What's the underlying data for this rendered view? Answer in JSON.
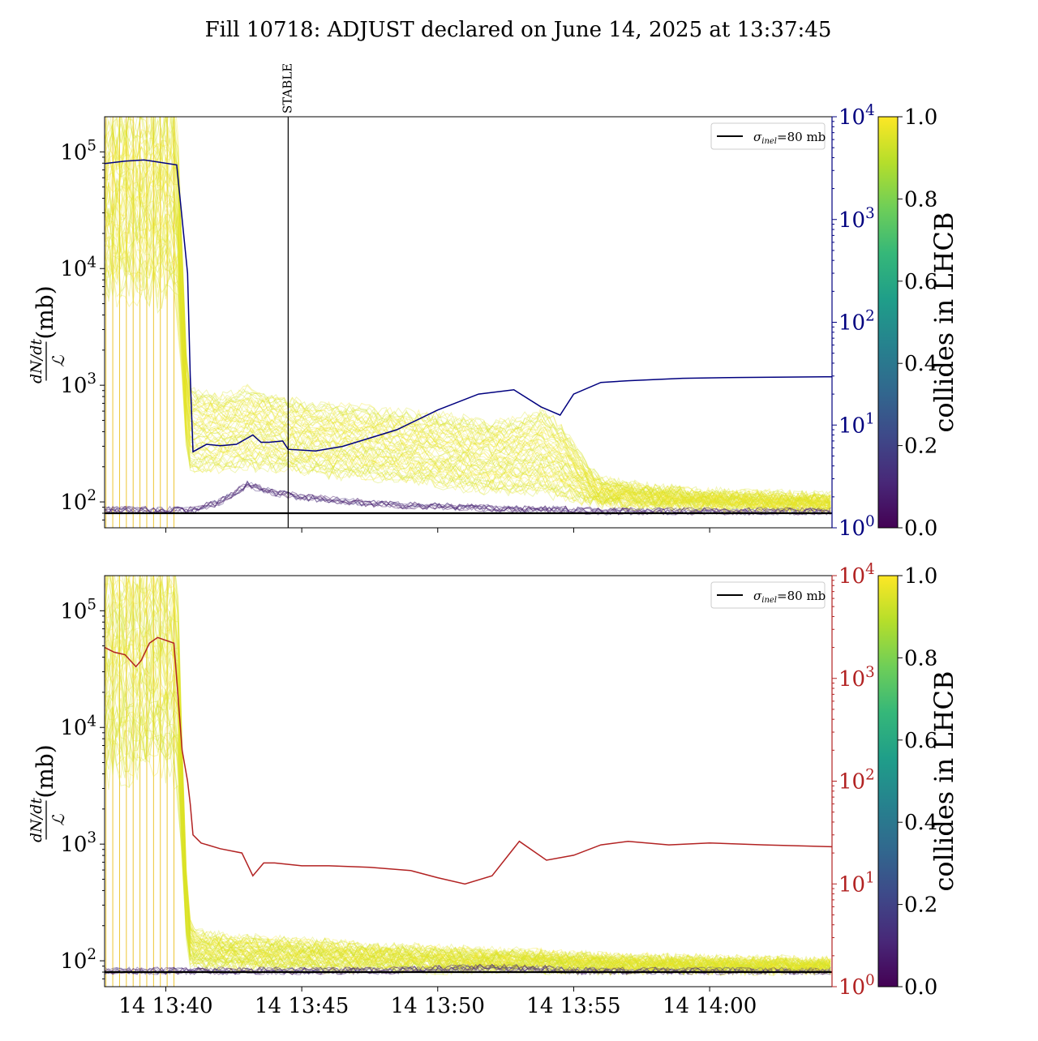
{
  "figure": {
    "title": "Fill 10718: ADJUST declared on June 14, 2025 at 13:37:45"
  },
  "chart_data": [
    {
      "type": "line",
      "panel": "top",
      "ylabel_num": "dN/dt",
      "ylabel_den": "ℒ",
      "ylabel_unit": "(mb)",
      "yscale": "log",
      "ylim": [
        60,
        200000
      ],
      "y_ticks": [
        {
          "value": 100,
          "label": "10",
          "exp": "2"
        },
        {
          "value": 1000,
          "label": "10",
          "exp": "3"
        },
        {
          "value": 10000,
          "label": "10",
          "exp": "4"
        },
        {
          "value": 100000,
          "label": "10",
          "exp": "5"
        }
      ],
      "xlim_minutes": [
        -2.25,
        24.5
      ],
      "x_ticks": [
        {
          "value": 0,
          "label": "14 13:40"
        },
        {
          "value": 5,
          "label": "14 13:45"
        },
        {
          "value": 10,
          "label": "14 13:50"
        },
        {
          "value": 15,
          "label": "14 13:55"
        },
        {
          "value": 20,
          "label": "14 14:00"
        }
      ],
      "show_xtick_labels": false,
      "reference_line": {
        "y": 80,
        "legend": "σ",
        "legend_sub": "inel",
        "legend_rest": "=80 mb"
      },
      "vline": {
        "x": 4.5,
        "label": "STABLE"
      },
      "right_axis": {
        "color": "#00007f",
        "yscale": "log",
        "ylim": [
          1,
          10000
        ],
        "ticks": [
          {
            "value": 1,
            "label": "10",
            "exp": "0"
          },
          {
            "value": 10,
            "label": "10",
            "exp": "1"
          },
          {
            "value": 100,
            "label": "10",
            "exp": "2"
          },
          {
            "value": 1000,
            "label": "10",
            "exp": "3"
          },
          {
            "value": 10000,
            "label": "10",
            "exp": "4"
          }
        ]
      },
      "right_series": {
        "x": [
          -2.25,
          -1.5,
          -0.8,
          -0.5,
          0.4,
          0.8,
          0.9,
          1.0,
          1.5,
          2.0,
          2.6,
          3.2,
          3.5,
          3.8,
          4.3,
          4.5,
          5.5,
          6.5,
          8.5,
          10,
          11.5,
          12.8,
          13.8,
          14.5,
          15.0,
          16,
          17,
          19,
          21,
          24.5
        ],
        "y": [
          3500,
          3700,
          3800,
          3700,
          3400,
          300,
          30,
          5.5,
          6.5,
          6.3,
          6.5,
          8,
          6.8,
          6.8,
          7,
          5.8,
          5.6,
          6.2,
          9,
          14,
          20,
          22,
          15,
          12.5,
          20,
          26,
          27,
          28.5,
          29,
          29.5
        ]
      },
      "band_series": {
        "note": "many bunch traces colored by collides value",
        "colorscale": "viridis",
        "x": [
          -2.25,
          -1.5,
          -0.8,
          -0.5,
          0.4,
          0.8,
          1.0,
          2.0,
          3.0,
          4.0,
          5.0,
          6.0,
          7.0,
          8.0,
          9.0,
          10.0,
          11.0,
          12.0,
          13.0,
          13.8,
          14.5,
          15.5,
          16.0,
          18.0,
          20.0,
          22.0,
          24.5
        ],
        "y_high": [
          200000,
          200000,
          200000,
          200000,
          200000,
          1000,
          900,
          800,
          900,
          800,
          700,
          650,
          640,
          600,
          560,
          540,
          500,
          460,
          500,
          600,
          450,
          200,
          150,
          130,
          120,
          115,
          110
        ],
        "y_low": [
          7000,
          7000,
          7000,
          7000,
          7000,
          200,
          180,
          190,
          200,
          190,
          180,
          170,
          165,
          155,
          150,
          140,
          130,
          125,
          120,
          120,
          110,
          100,
          95,
          92,
          90,
          90,
          88
        ],
        "y_dark": [
          85,
          85,
          85,
          85,
          85,
          85,
          85,
          100,
          140,
          120,
          110,
          105,
          100,
          95,
          93,
          92,
          90,
          88,
          87,
          86,
          86,
          84,
          83,
          83,
          83,
          83,
          83
        ]
      }
    },
    {
      "type": "line",
      "panel": "bottom",
      "ylabel_num": "dN/dt",
      "ylabel_den": "ℒ",
      "ylabel_unit": "(mb)",
      "yscale": "log",
      "ylim": [
        60,
        200000
      ],
      "y_ticks": [
        {
          "value": 100,
          "label": "10",
          "exp": "2"
        },
        {
          "value": 1000,
          "label": "10",
          "exp": "3"
        },
        {
          "value": 10000,
          "label": "10",
          "exp": "4"
        },
        {
          "value": 100000,
          "label": "10",
          "exp": "5"
        }
      ],
      "xlim_minutes": [
        -2.25,
        24.5
      ],
      "x_ticks": [
        {
          "value": 0,
          "label": "14 13:40"
        },
        {
          "value": 5,
          "label": "14 13:45"
        },
        {
          "value": 10,
          "label": "14 13:50"
        },
        {
          "value": 15,
          "label": "14 13:55"
        },
        {
          "value": 20,
          "label": "14 14:00"
        }
      ],
      "show_xtick_labels": true,
      "reference_line": {
        "y": 80,
        "legend": "σ",
        "legend_sub": "inel",
        "legend_rest": "=80 mb"
      },
      "right_axis": {
        "color": "#b22222",
        "yscale": "log",
        "ylim": [
          1,
          10000
        ],
        "ticks": [
          {
            "value": 1,
            "label": "10",
            "exp": "0"
          },
          {
            "value": 10,
            "label": "10",
            "exp": "1"
          },
          {
            "value": 100,
            "label": "10",
            "exp": "2"
          },
          {
            "value": 1000,
            "label": "10",
            "exp": "3"
          },
          {
            "value": 10000,
            "label": "10",
            "exp": "4"
          }
        ]
      },
      "right_series": {
        "x": [
          -2.25,
          -1.9,
          -1.5,
          -1.1,
          -0.9,
          -0.6,
          -0.3,
          0.3,
          0.6,
          0.8,
          0.9,
          1.0,
          1.3,
          2.0,
          2.8,
          3.2,
          3.6,
          4.0,
          5.0,
          6.0,
          7.5,
          9.0,
          10.0,
          11.0,
          12.0,
          13.0,
          14.0,
          15.0,
          16.0,
          17.0,
          18.5,
          20.0,
          22.0,
          24.5
        ],
        "y": [
          2000,
          1800,
          1700,
          1300,
          1500,
          2200,
          2500,
          2200,
          200,
          100,
          60,
          30,
          25,
          22,
          20,
          12,
          16,
          16,
          15,
          15,
          14.5,
          13.5,
          11.5,
          10,
          12,
          26,
          17,
          19,
          24,
          26,
          24,
          25,
          24,
          23
        ]
      },
      "band_series": {
        "note": "many bunch traces colored by collides value",
        "colorscale": "viridis",
        "x": [
          -2.25,
          -1.5,
          -0.8,
          -0.5,
          0.4,
          0.8,
          1.0,
          2.0,
          4.0,
          6.0,
          8.0,
          10.0,
          12.0,
          14.0,
          15.0,
          16.0,
          18.0,
          20.0,
          22.0,
          24.5
        ],
        "y_high": [
          200000,
          200000,
          200000,
          200000,
          200000,
          250,
          180,
          160,
          150,
          140,
          130,
          125,
          120,
          115,
          110,
          108,
          105,
          102,
          100,
          98
        ],
        "y_low": [
          5000,
          5000,
          5000,
          5000,
          5000,
          100,
          90,
          88,
          87,
          86,
          86,
          85,
          85,
          85,
          84,
          84,
          84,
          84,
          84,
          84
        ],
        "y_dark": [
          82,
          82,
          82,
          82,
          82,
          82,
          82,
          82,
          82,
          82,
          82,
          85,
          88,
          85,
          82,
          82,
          82,
          82,
          82,
          82
        ]
      }
    }
  ],
  "colorbar": {
    "label": "collides in LHCB",
    "ticks": [
      "0.0",
      "0.2",
      "0.4",
      "0.6",
      "0.8",
      "1.0"
    ],
    "colors": [
      "#440154",
      "#482878",
      "#3e4989",
      "#31688e",
      "#26828e",
      "#1f9e89",
      "#35b779",
      "#6ece58",
      "#b5de2b",
      "#fde725"
    ]
  }
}
